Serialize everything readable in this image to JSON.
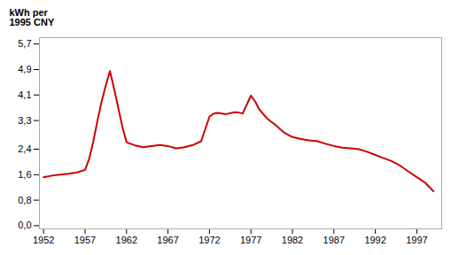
{
  "chart_data": {
    "type": "line",
    "ylabel": "kWh per\n1995 CNY",
    "x": [
      1952,
      1953,
      1954,
      1955,
      1956,
      1957,
      1957.5,
      1958,
      1958.5,
      1959,
      1959.5,
      1960,
      1960.5,
      1961,
      1961.5,
      1962,
      1963,
      1964,
      1965,
      1966,
      1967,
      1967.5,
      1968,
      1969,
      1970,
      1971,
      1972,
      1972.5,
      1973,
      1973.5,
      1974,
      1975,
      1975.5,
      1976,
      1977,
      1977.5,
      1978,
      1979,
      1980,
      1981,
      1982,
      1983,
      1984,
      1985,
      1986,
      1987,
      1988,
      1989,
      1990,
      1991,
      1992,
      1993,
      1994,
      1995,
      1996,
      1997,
      1998,
      1999
    ],
    "values": [
      1.52,
      1.57,
      1.6,
      1.63,
      1.67,
      1.75,
      2.1,
      2.65,
      3.3,
      3.9,
      4.4,
      4.85,
      4.3,
      3.7,
      3.1,
      2.62,
      2.52,
      2.46,
      2.5,
      2.53,
      2.5,
      2.46,
      2.43,
      2.46,
      2.53,
      2.65,
      3.42,
      3.52,
      3.54,
      3.52,
      3.5,
      3.56,
      3.55,
      3.52,
      4.08,
      3.9,
      3.65,
      3.35,
      3.15,
      2.92,
      2.78,
      2.72,
      2.68,
      2.65,
      2.57,
      2.5,
      2.45,
      2.43,
      2.4,
      2.32,
      2.22,
      2.12,
      2.02,
      1.88,
      1.7,
      1.52,
      1.35,
      1.08
    ],
    "color": "#cc0000",
    "xlim": [
      1951.5,
      2000
    ],
    "ylim": [
      -0.1,
      5.9
    ],
    "xticks": [
      1952,
      1957,
      1962,
      1967,
      1972,
      1977,
      1982,
      1987,
      1992,
      1997
    ],
    "yticks": [
      {
        "value": 0.0,
        "label": "0,0"
      },
      {
        "value": 0.8,
        "label": "0,8"
      },
      {
        "value": 1.6,
        "label": "1,6"
      },
      {
        "value": 2.4,
        "label": "2,4"
      },
      {
        "value": 3.3,
        "label": "3,3"
      },
      {
        "value": 4.1,
        "label": "4,1"
      },
      {
        "value": 4.9,
        "label": "4,9"
      },
      {
        "value": 5.7,
        "label": "5,7"
      }
    ],
    "grid": false
  }
}
